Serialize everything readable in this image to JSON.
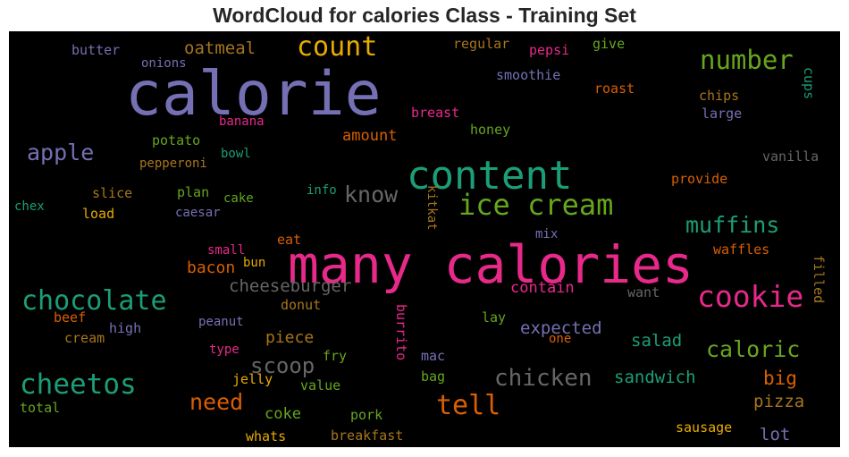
{
  "title": "WordCloud for calories Class - Training Set",
  "colors": {
    "teal": "#1b9e77",
    "orange": "#d95f02",
    "purple": "#7570b3",
    "pink": "#e7298a",
    "green": "#66a61e",
    "gold": "#e6ab02",
    "brown": "#a6761d",
    "gray": "#666666"
  },
  "words": [
    "calorie",
    "many calories",
    "content",
    "ice cream",
    "cookie",
    "chocolate",
    "cheetos",
    "count",
    "number",
    "tell",
    "chicken",
    "muffins",
    "know",
    "caloric",
    "scoop",
    "apple",
    "need",
    "cheeseburger",
    "expected",
    "sandwich",
    "oatmeal",
    "salad",
    "contain",
    "piece",
    "bacon",
    "amount",
    "big",
    "pizza",
    "coke",
    "lot",
    "butter",
    "onions",
    "regular",
    "pepsi",
    "give",
    "smoothie",
    "roast",
    "chips",
    "cups",
    "breast",
    "large",
    "banana",
    "honey",
    "potato",
    "bowl",
    "pepperoni",
    "vanilla",
    "provide",
    "info",
    "slice",
    "plan",
    "cake",
    "kitkat",
    "chex",
    "load",
    "caesar",
    "mix",
    "waffles",
    "eat",
    "small",
    "bun",
    "filled",
    "want",
    "beef",
    "donut",
    "peanut",
    "burrito",
    "lay",
    "high",
    "cream",
    "type",
    "one",
    "fry",
    "mac",
    "jelly",
    "value",
    "bag",
    "total",
    "pork",
    "sausage",
    "whats",
    "breakfast"
  ]
}
